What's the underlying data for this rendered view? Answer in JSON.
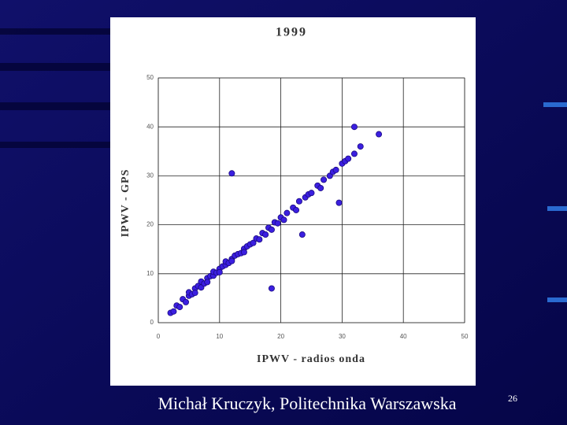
{
  "chart_data": {
    "type": "scatter",
    "title": "1999",
    "x_label": "IPWV - radios onda",
    "y_label": "IPWV - GPS",
    "footer": "Michał Kruczyk, Politechnika Warszawska",
    "page_number": "26",
    "color": "#3b1fe0",
    "x": [
      2,
      2.5,
      3,
      3.5,
      4,
      4.5,
      5,
      5,
      5.5,
      6,
      6,
      6.5,
      7,
      7,
      7.5,
      8,
      8,
      8.5,
      9,
      9,
      9.5,
      10,
      10,
      10.5,
      11,
      11,
      11.5,
      12,
      12,
      12.5,
      13,
      13.5,
      14,
      14,
      14.5,
      15,
      15.5,
      16,
      16.5,
      17,
      17.5,
      18,
      18.5,
      19,
      19.5,
      20,
      20.5,
      21,
      22,
      22.5,
      23,
      24,
      24.5,
      25,
      26,
      26.5,
      27,
      28,
      28.5,
      29,
      30,
      30.5,
      31,
      32,
      33,
      12,
      18.5,
      29.5,
      36,
      32,
      23.5
    ],
    "y": [
      2,
      2.3,
      3.5,
      3.2,
      4.8,
      4.2,
      5.5,
      6.2,
      5.8,
      7,
      6.1,
      7.5,
      7.2,
      8.4,
      8,
      9.1,
      8.3,
      9.5,
      9.6,
      10.4,
      10.2,
      11,
      10.3,
      11.5,
      11.8,
      12.5,
      12.2,
      13,
      12.6,
      13.7,
      14,
      14.2,
      15.1,
      14.4,
      15.6,
      16,
      16.3,
      17.2,
      17,
      18.3,
      18,
      19.4,
      19,
      20.5,
      20.3,
      21.5,
      21,
      22.4,
      23.5,
      23,
      24.8,
      25.6,
      26.2,
      26.5,
      28,
      27.5,
      29.2,
      30,
      30.8,
      31.2,
      32.5,
      33,
      33.5,
      34.5,
      36,
      30.5,
      7,
      24.5,
      38.5,
      40,
      18
    ],
    "xlim": [
      0,
      50
    ],
    "ylim": [
      0,
      50
    ],
    "xticks": [
      0,
      10,
      20,
      30,
      40,
      50
    ],
    "yticks": [
      0,
      10,
      20,
      30,
      40,
      50
    ],
    "grid": true
  }
}
